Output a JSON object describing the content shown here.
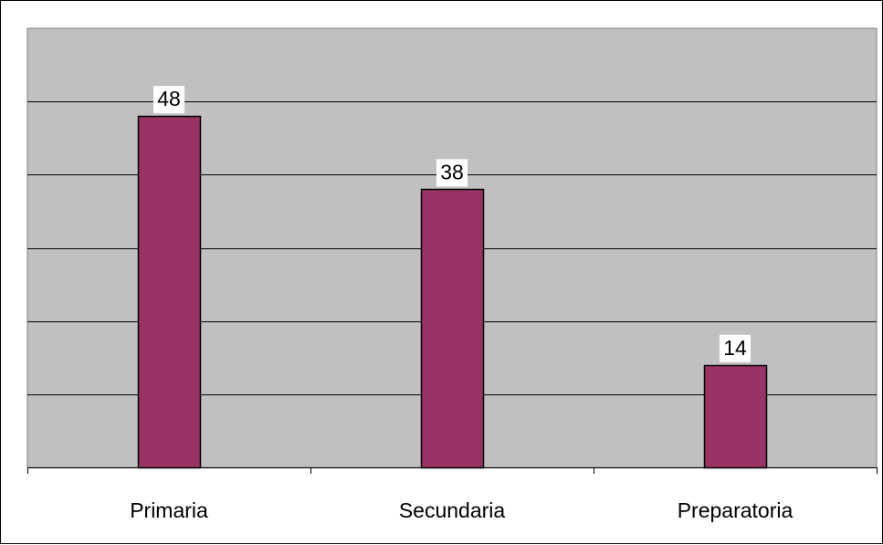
{
  "chart_data": {
    "type": "bar",
    "categories": [
      "Primaria",
      "Secundaria",
      "Preparatoria"
    ],
    "values": [
      48,
      38,
      14
    ],
    "data_labels": [
      "48",
      "38",
      "14"
    ],
    "title": "",
    "xlabel": "",
    "ylabel": "",
    "ylim": [
      0,
      60
    ],
    "y_gridline_step": 10,
    "grid": true,
    "legend": "none",
    "colors": {
      "plot_background": "#c0c0c0",
      "bar_fill": "#993366",
      "bar_stroke": "#000000",
      "gridline": "#000000"
    }
  }
}
